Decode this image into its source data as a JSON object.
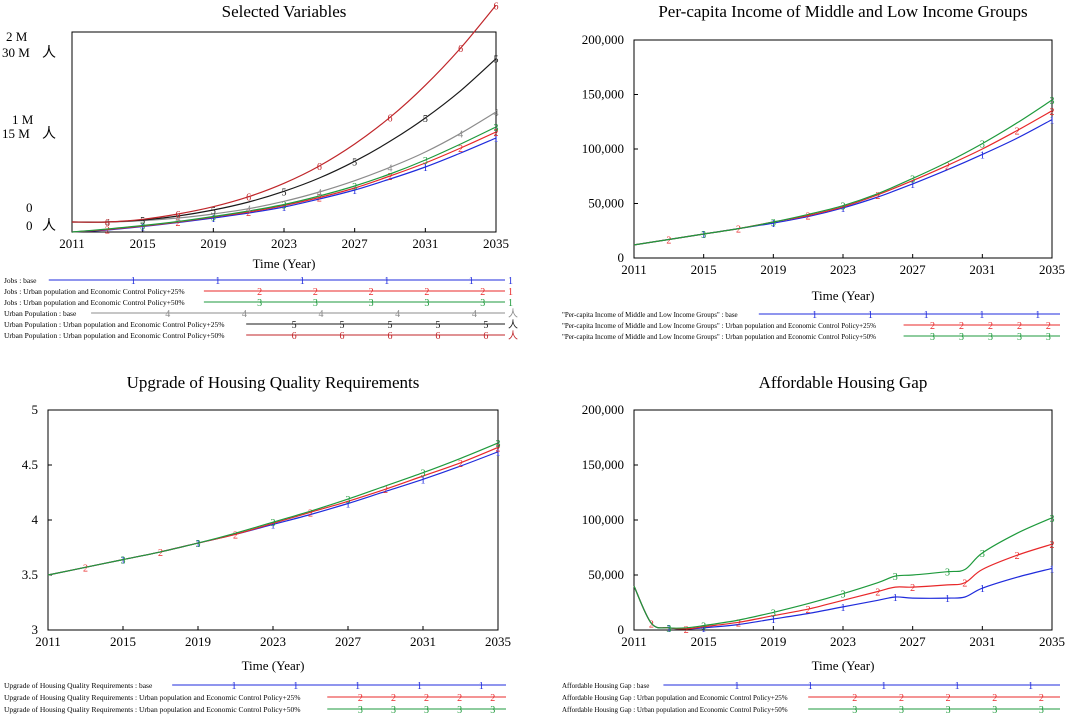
{
  "colors": {
    "base": "#1f2bdc",
    "p25": "#e8282a",
    "p50": "#1e9a3c",
    "up_base": "#8c8c8c",
    "up_p25": "#1a1a1a",
    "up_p50": "#c0262a"
  },
  "chart_data": [
    {
      "id": "selected",
      "type": "line",
      "title": "Selected Variables",
      "xlabel": "Time (Year)",
      "xlim": [
        2011,
        2035
      ],
      "xticks": [
        "2011",
        "2015",
        "2019",
        "2023",
        "2027",
        "2031",
        "2035"
      ],
      "left_axis": {
        "top": "2 M",
        "mid": "1 M",
        "bottom": "0"
      },
      "right_axis": {
        "top": "30 M",
        "mid": "15 M",
        "bottom": "0",
        "unit": "人"
      },
      "x": [
        2011,
        2013,
        2015,
        2017,
        2019,
        2021,
        2023,
        2025,
        2027,
        2029,
        2031,
        2033,
        2035
      ],
      "series": [
        {
          "name": "Jobs : base",
          "marker": "1",
          "color_key": "base",
          "ylim": [
            0,
            2000000
          ],
          "unit": "1",
          "values": [
            0,
            20000,
            55000,
            95000,
            140000,
            190000,
            250000,
            330000,
            420000,
            530000,
            650000,
            790000,
            940000
          ]
        },
        {
          "name": "Jobs : Urban population and Economic Control Policy+25%",
          "marker": "2",
          "color_key": "p25",
          "ylim": [
            0,
            2000000
          ],
          "unit": "1",
          "values": [
            0,
            25000,
            60000,
            100000,
            150000,
            200000,
            265000,
            345000,
            440000,
            560000,
            690000,
            840000,
            1000000
          ]
        },
        {
          "name": "Jobs : Urban population and Economic Control Policy+50%",
          "marker": "3",
          "color_key": "p50",
          "ylim": [
            0,
            2000000
          ],
          "unit": "1",
          "values": [
            0,
            30000,
            65000,
            105000,
            155000,
            210000,
            275000,
            360000,
            460000,
            580000,
            720000,
            880000,
            1050000
          ]
        },
        {
          "name": "Urban Population : base",
          "marker": "4",
          "color_key": "up_base",
          "ylim": [
            0,
            30000000
          ],
          "unit": "人",
          "values": [
            1500000,
            1500000,
            1700000,
            2100000,
            2700000,
            3500000,
            4600000,
            6000000,
            7700000,
            9700000,
            12000000,
            14800000,
            18000000
          ]
        },
        {
          "name": "Urban Population : Urban population and Economic Control Policy+25%",
          "marker": "5",
          "color_key": "up_p25",
          "ylim": [
            0,
            30000000
          ],
          "unit": "人",
          "values": [
            1500000,
            1500000,
            1800000,
            2400000,
            3300000,
            4500000,
            6100000,
            8100000,
            10600000,
            13600000,
            17100000,
            21200000,
            26000000
          ]
        },
        {
          "name": "Urban Population : Urban population and Economic Control Policy+50%",
          "marker": "6",
          "color_key": "up_p50",
          "ylim": [
            0,
            30000000
          ],
          "unit": "人",
          "values": [
            1500000,
            1500000,
            1900000,
            2700000,
            3800000,
            5300000,
            7300000,
            9900000,
            13200000,
            17200000,
            22000000,
            27600000,
            34000000
          ]
        }
      ]
    },
    {
      "id": "income",
      "type": "line",
      "title": "Per-capita Income of Middle and Low Income Groups",
      "xlabel": "Time (Year)",
      "xlim": [
        2011,
        2035
      ],
      "xticks": [
        "2011",
        "2015",
        "2019",
        "2023",
        "2027",
        "2031",
        "2035"
      ],
      "ylim": [
        0,
        200000
      ],
      "yticks": [
        {
          "v": 0,
          "label": "0"
        },
        {
          "v": 50000,
          "label": "50,000"
        },
        {
          "v": 100000,
          "label": "100,000"
        },
        {
          "v": 150000,
          "label": "150,000"
        },
        {
          "v": 200000,
          "label": "200,000"
        }
      ],
      "x": [
        2011,
        2013,
        2015,
        2017,
        2019,
        2021,
        2023,
        2025,
        2027,
        2029,
        2031,
        2033,
        2035
      ],
      "series": [
        {
          "name": "\"Per-capita Income of Middle and Low Income Groups\" : base",
          "marker": "1",
          "color_key": "base",
          "values": [
            12000,
            17000,
            22000,
            27000,
            32000,
            38000,
            46000,
            56000,
            68000,
            81000,
            95000,
            110000,
            127000
          ]
        },
        {
          "name": "\"Per-capita Income of Middle and Low Income Groups\" : Urban population and Economic Control Policy+25%",
          "marker": "2",
          "color_key": "p25",
          "values": [
            12000,
            17000,
            22000,
            27000,
            33000,
            39000,
            47000,
            58000,
            71000,
            85000,
            100000,
            117000,
            135000
          ]
        },
        {
          "name": "\"Per-capita Income of Middle and Low Income Groups\" : Urban population and Economic Control Policy+50%",
          "marker": "3",
          "color_key": "p50",
          "values": [
            12000,
            17000,
            22000,
            27000,
            33000,
            40000,
            48000,
            59000,
            73000,
            88000,
            105000,
            124000,
            145000
          ]
        }
      ]
    },
    {
      "id": "housing_quality",
      "type": "line",
      "title": "Upgrade of Housing Quality Requirements",
      "xlabel": "Time (Year)",
      "xlim": [
        2011,
        2035
      ],
      "xticks": [
        "2011",
        "2015",
        "2019",
        "2023",
        "2027",
        "2031",
        "2035"
      ],
      "ylim": [
        3,
        5
      ],
      "yticks": [
        {
          "v": 3,
          "label": "3"
        },
        {
          "v": 3.5,
          "label": "3.5"
        },
        {
          "v": 4,
          "label": "4"
        },
        {
          "v": 4.5,
          "label": "4.5"
        },
        {
          "v": 5,
          "label": "5"
        }
      ],
      "x": [
        2011,
        2013,
        2015,
        2017,
        2019,
        2021,
        2023,
        2025,
        2027,
        2029,
        2031,
        2033,
        2035
      ],
      "series": [
        {
          "name": "Upgrade of Housing Quality Requirements : base",
          "marker": "1",
          "color_key": "base",
          "values": [
            3.5,
            3.57,
            3.64,
            3.71,
            3.79,
            3.87,
            3.96,
            4.05,
            4.15,
            4.26,
            4.37,
            4.49,
            4.62
          ]
        },
        {
          "name": "Upgrade of Housing Quality Requirements : Urban population and Economic Control Policy+25%",
          "marker": "2",
          "color_key": "p25",
          "values": [
            3.5,
            3.57,
            3.64,
            3.71,
            3.79,
            3.87,
            3.97,
            4.07,
            4.17,
            4.28,
            4.4,
            4.52,
            4.66
          ]
        },
        {
          "name": "Upgrade of Housing Quality Requirements : Urban population and Economic Control Policy+50%",
          "marker": "3",
          "color_key": "p50",
          "values": [
            3.5,
            3.57,
            3.64,
            3.71,
            3.79,
            3.88,
            3.98,
            4.08,
            4.19,
            4.31,
            4.43,
            4.56,
            4.7
          ]
        }
      ]
    },
    {
      "id": "housing_gap",
      "type": "line",
      "title": "Affordable Housing Gap",
      "xlabel": "Time (Year)",
      "xlim": [
        2011,
        2035
      ],
      "xticks": [
        "2011",
        "2015",
        "2019",
        "2023",
        "2027",
        "2031",
        "2035"
      ],
      "ylim": [
        0,
        200000
      ],
      "yticks": [
        {
          "v": 0,
          "label": "0"
        },
        {
          "v": 50000,
          "label": "50,000"
        },
        {
          "v": 100000,
          "label": "100,000"
        },
        {
          "v": 150000,
          "label": "150,000"
        },
        {
          "v": 200000,
          "label": "200,000"
        }
      ],
      "x": [
        2011,
        2012,
        2013,
        2014,
        2015,
        2017,
        2019,
        2021,
        2023,
        2025,
        2026,
        2027,
        2029,
        2030,
        2031,
        2033,
        2035
      ],
      "series": [
        {
          "name": "Affordable Housing Gap : base",
          "marker": "1",
          "color_key": "base",
          "values": [
            40000,
            6000,
            2000,
            1000,
            2000,
            5000,
            10000,
            15000,
            21000,
            27000,
            30000,
            29000,
            29000,
            30000,
            38000,
            48000,
            56000
          ]
        },
        {
          "name": "Affordable Housing Gap : Urban population and Economic Control Policy+25%",
          "marker": "2",
          "color_key": "p25",
          "values": [
            40000,
            6000,
            2000,
            1000,
            3000,
            7000,
            13000,
            19000,
            27000,
            35000,
            39000,
            39000,
            41000,
            43000,
            55000,
            68000,
            78000
          ]
        },
        {
          "name": "Affordable Housing Gap : Urban population and Economic Control Policy+50%",
          "marker": "3",
          "color_key": "p50",
          "values": [
            40000,
            6000,
            2000,
            2000,
            4000,
            9000,
            16000,
            24000,
            33000,
            43000,
            49000,
            50000,
            53000,
            55000,
            70000,
            88000,
            102000
          ]
        }
      ]
    }
  ]
}
